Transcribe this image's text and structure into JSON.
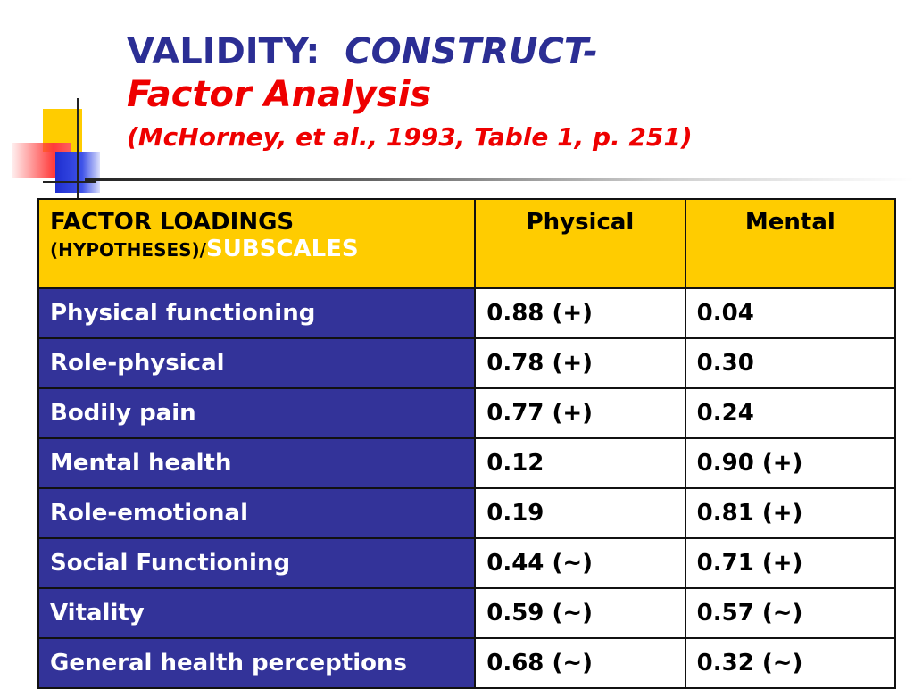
{
  "title": {
    "line1_prefix": "VALIDITY:",
    "line1_italic": "CONSTRUCT-",
    "line2": "Factor Analysis",
    "line3": "(McHorney, et al., 1993, Table 1, p. 251)"
  },
  "colors": {
    "title_blue": "#2b2e94",
    "title_red": "#ee0000",
    "header_bg": "#ffcc00",
    "label_bg": "#333399",
    "hypothesis_physical": "#ff0000",
    "hypothesis_mental": "#2b2ec8",
    "hypothesis_mixed": "#d6a800"
  },
  "table": {
    "header": {
      "line1": "FACTOR LOADINGS",
      "line2_small": "(HYPOTHESES)/",
      "line2_large": "SUBSCALES",
      "col_physical": "Physical",
      "col_mental": "Mental"
    },
    "rows": [
      {
        "label": "Physical functioning",
        "physical": "0.88 (+)",
        "physical_color": "red",
        "mental": "0.04",
        "mental_color": "black"
      },
      {
        "label": "Role-physical",
        "physical": "0.78 (+)",
        "physical_color": "red",
        "mental": "0.30",
        "mental_color": "black"
      },
      {
        "label": "Bodily pain",
        "physical": "0.77 (+)",
        "physical_color": "red",
        "mental": "0.24",
        "mental_color": "black"
      },
      {
        "label": "Mental health",
        "physical": "0.12",
        "physical_color": "black",
        "mental": "0.90 (+)",
        "mental_color": "blue"
      },
      {
        "label": "Role-emotional",
        "physical": "0.19",
        "physical_color": "black",
        "mental": "0.81 (+)",
        "mental_color": "blue"
      },
      {
        "label": "Social Functioning",
        "physical": "0.44 (~)",
        "physical_color": "gold",
        "mental": "0.71 (+)",
        "mental_color": "blue"
      },
      {
        "label": "Vitality",
        "physical": "0.59 (~)",
        "physical_color": "gold",
        "mental": "0.57 (~)",
        "mental_color": "gold"
      },
      {
        "label": "General health perceptions",
        "physical": "0.68 (~)",
        "physical_color": "gold",
        "mental": "0.32 (~)",
        "mental_color": "gold"
      }
    ]
  }
}
